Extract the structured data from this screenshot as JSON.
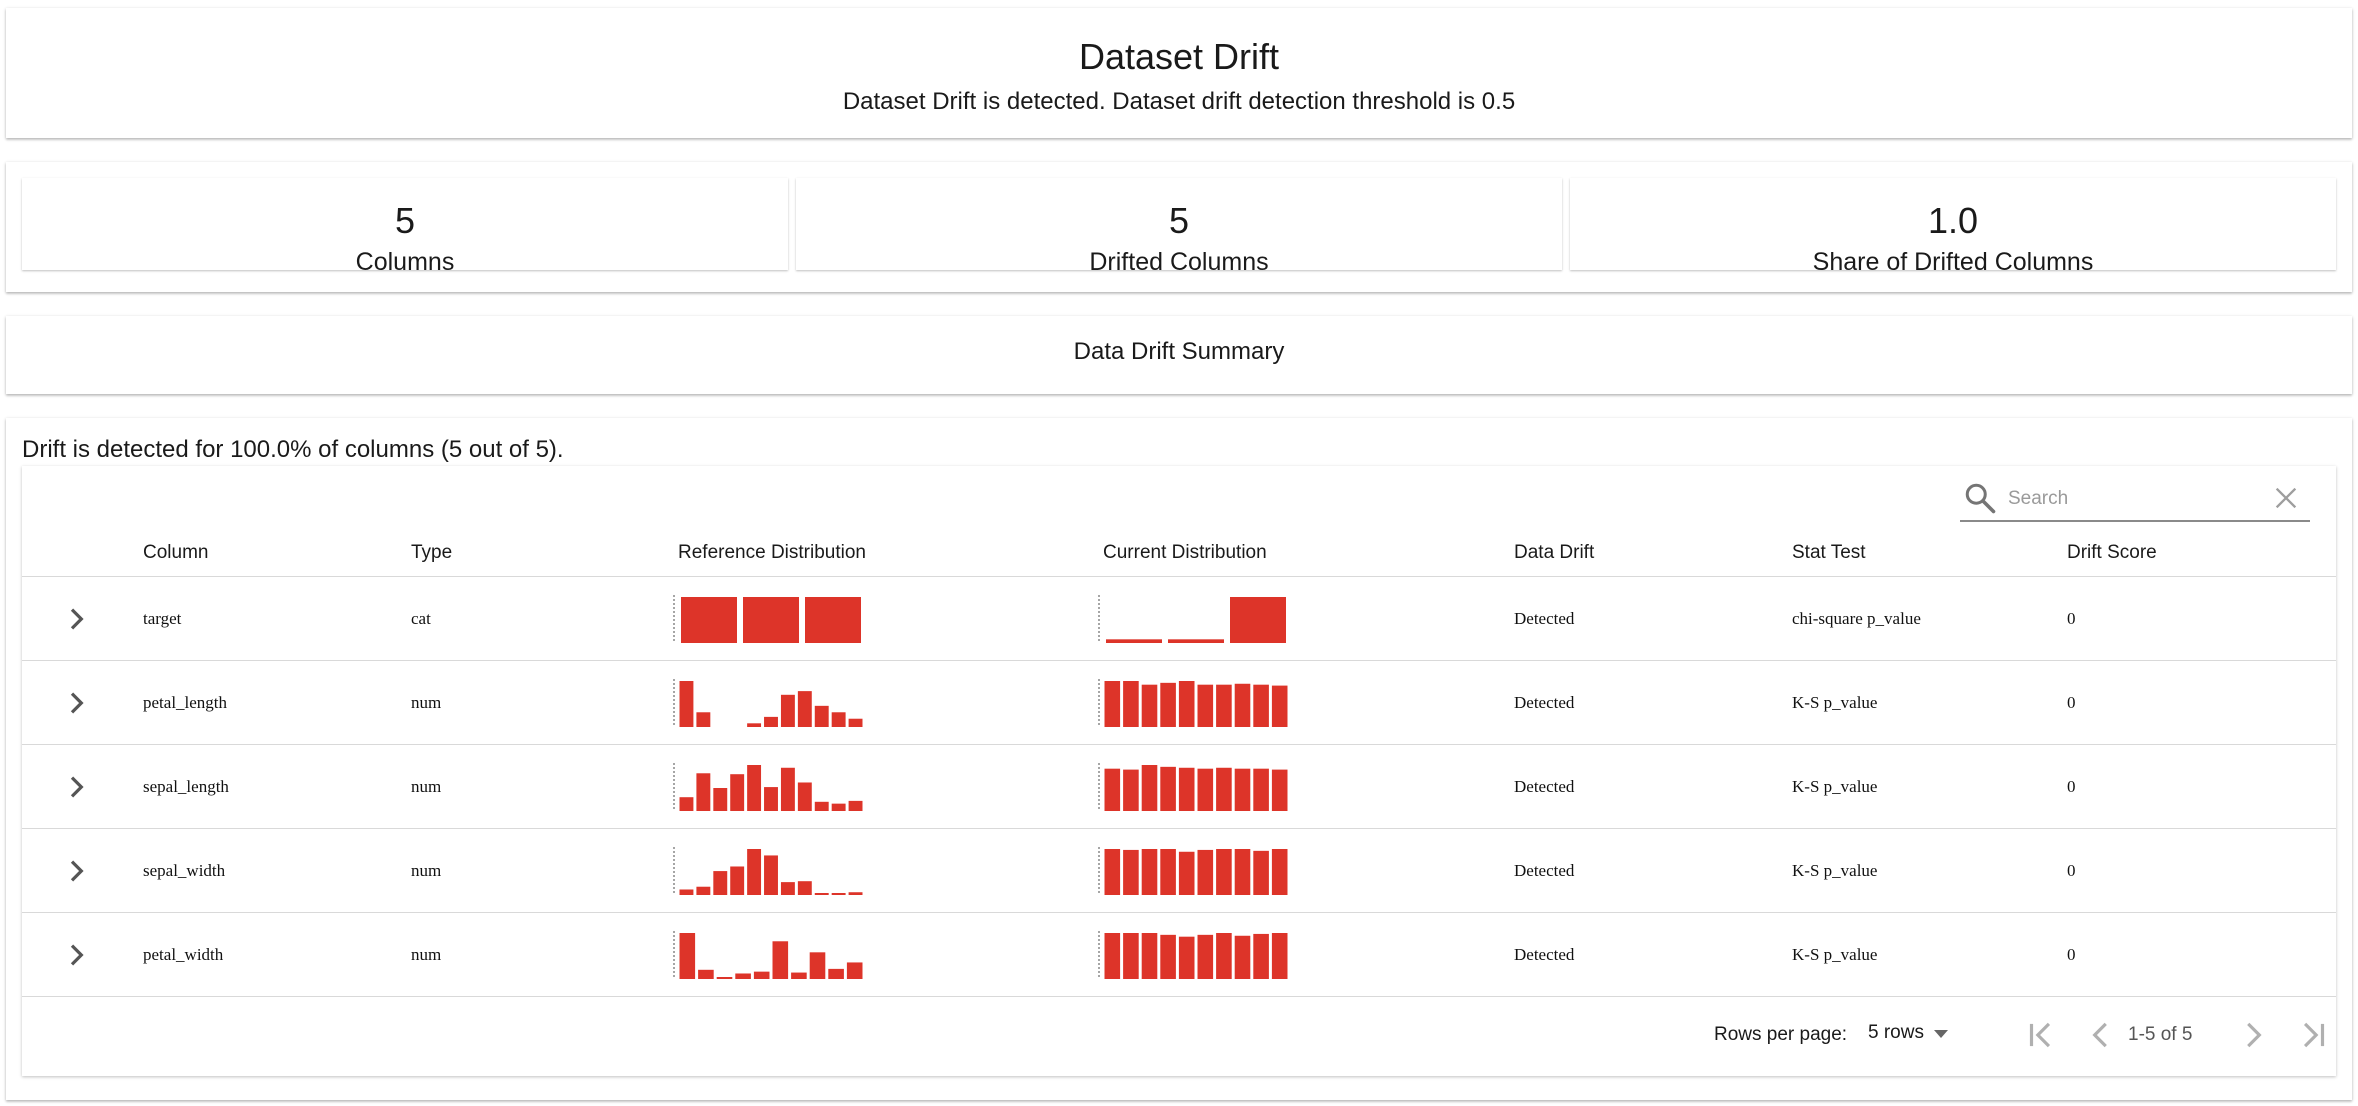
{
  "header": {
    "title": "Dataset Drift",
    "subtitle": "Dataset Drift is detected. Dataset drift detection threshold is 0.5"
  },
  "counters": [
    {
      "value": "5",
      "label": "Columns"
    },
    {
      "value": "5",
      "label": "Drifted Columns"
    },
    {
      "value": "1.0",
      "label": "Share of Drifted Columns"
    }
  ],
  "summary": {
    "title": "Data Drift Summary"
  },
  "table": {
    "message": "Drift is detected for 100.0% of columns (5 out of 5).",
    "search": {
      "placeholder": "Search",
      "value": ""
    },
    "columns": [
      "Column",
      "Type",
      "Reference Distribution",
      "Current Distribution",
      "Data Drift",
      "Stat Test",
      "Drift Score"
    ],
    "bar_color": "#dd3429",
    "rows": [
      {
        "column": "target",
        "type": "cat",
        "data_drift": "Detected",
        "stat_test": "chi-square p_value",
        "drift_score": "0",
        "reference_distribution": [
          1,
          1,
          1
        ],
        "current_distribution": [
          0.08,
          0.08,
          1
        ]
      },
      {
        "column": "petal_length",
        "type": "num",
        "data_drift": "Detected",
        "stat_test": "K-S p_value",
        "drift_score": "0",
        "reference_distribution": [
          1,
          0.32,
          0,
          0,
          0.08,
          0.22,
          0.7,
          0.78,
          0.46,
          0.32,
          0.18
        ],
        "current_distribution": [
          1,
          1,
          0.92,
          0.96,
          1,
          0.92,
          0.92,
          0.94,
          0.92,
          0.9
        ]
      },
      {
        "column": "sepal_length",
        "type": "num",
        "data_drift": "Detected",
        "stat_test": "K-S p_value",
        "drift_score": "0",
        "reference_distribution": [
          0.3,
          0.82,
          0.5,
          0.8,
          1,
          0.52,
          0.94,
          0.62,
          0.2,
          0.16,
          0.22
        ],
        "current_distribution": [
          0.92,
          0.9,
          1,
          0.96,
          0.94,
          0.92,
          0.94,
          0.92,
          0.92,
          0.9
        ]
      },
      {
        "column": "sepal_width",
        "type": "num",
        "data_drift": "Detected",
        "stat_test": "K-S p_value",
        "drift_score": "0",
        "reference_distribution": [
          0.12,
          0.18,
          0.52,
          0.62,
          1,
          0.86,
          0.28,
          0.3,
          0.04,
          0.04,
          0.06
        ],
        "current_distribution": [
          1,
          0.98,
          1,
          1,
          0.94,
          0.98,
          1,
          1,
          0.96,
          1
        ]
      },
      {
        "column": "petal_width",
        "type": "num",
        "data_drift": "Detected",
        "stat_test": "K-S p_value",
        "drift_score": "0",
        "reference_distribution": [
          1,
          0.2,
          0.03,
          0.12,
          0.16,
          0.82,
          0.14,
          0.58,
          0.22,
          0.36
        ],
        "current_distribution": [
          1,
          1,
          1,
          0.96,
          0.92,
          0.96,
          1,
          0.94,
          0.98,
          1
        ]
      }
    ]
  },
  "pagination": {
    "rows_per_page_label": "Rows per page:",
    "rows_per_page_value": "5 rows",
    "range": "1-5 of 5"
  }
}
